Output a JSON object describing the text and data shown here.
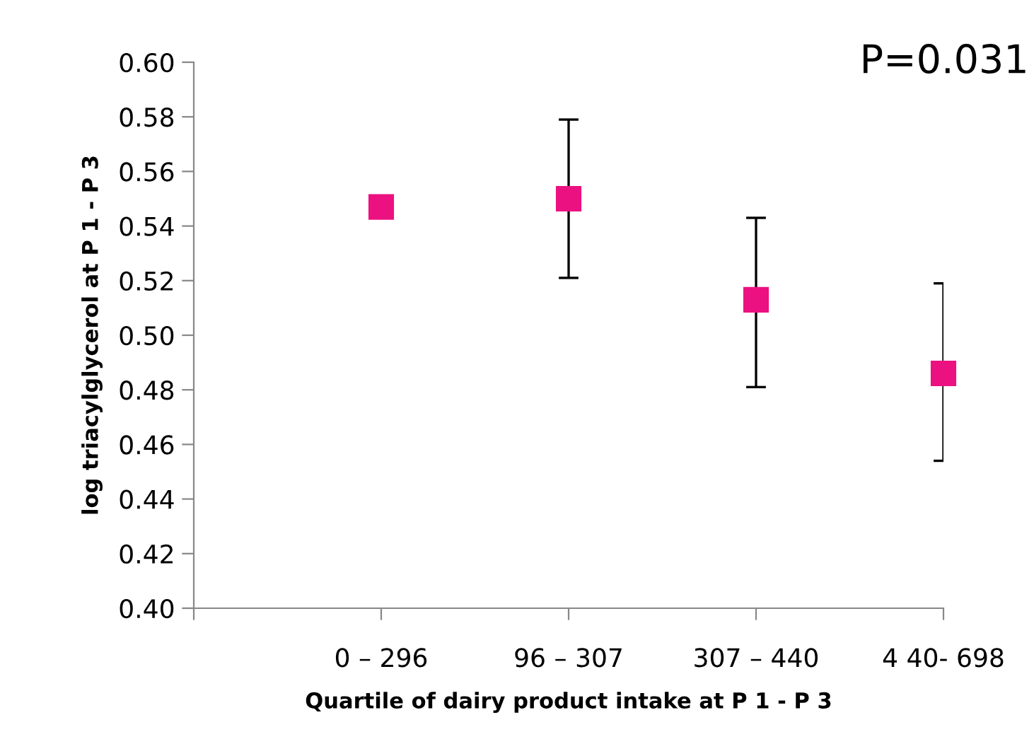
{
  "chart_data": {
    "type": "scatter",
    "categories": [
      "0 – 296",
      "96 – 307",
      "307 – 440",
      "4 40- 698"
    ],
    "values": [
      0.547,
      0.55,
      0.513,
      0.486
    ],
    "errors": [
      null,
      [
        0.521,
        0.579
      ],
      [
        0.481,
        0.543
      ],
      [
        0.454,
        0.519
      ]
    ],
    "color": "#ec1181",
    "marker": "square",
    "xlabel": "Quartile of dairy product intake at P 1 - P 3",
    "ylabel": "log triacylglycerol at P 1 - P 3",
    "ylim": [
      0.4,
      0.6
    ],
    "yticks": [
      {
        "value": 0.4,
        "label": "0.40"
      },
      {
        "value": 0.42,
        "label": "0.42"
      },
      {
        "value": 0.44,
        "label": "0.44"
      },
      {
        "value": 0.46,
        "label": "0.46"
      },
      {
        "value": 0.48,
        "label": "0.48"
      },
      {
        "value": 0.5,
        "label": "0.50"
      },
      {
        "value": 0.52,
        "label": "0.52"
      },
      {
        "value": 0.54,
        "label": "0.54"
      },
      {
        "value": 0.56,
        "label": "0.56"
      },
      {
        "value": 0.58,
        "label": "0.58"
      },
      {
        "value": 0.6,
        "label": "0.60"
      }
    ],
    "annotations": [
      "P=0.031"
    ],
    "grid": false
  }
}
